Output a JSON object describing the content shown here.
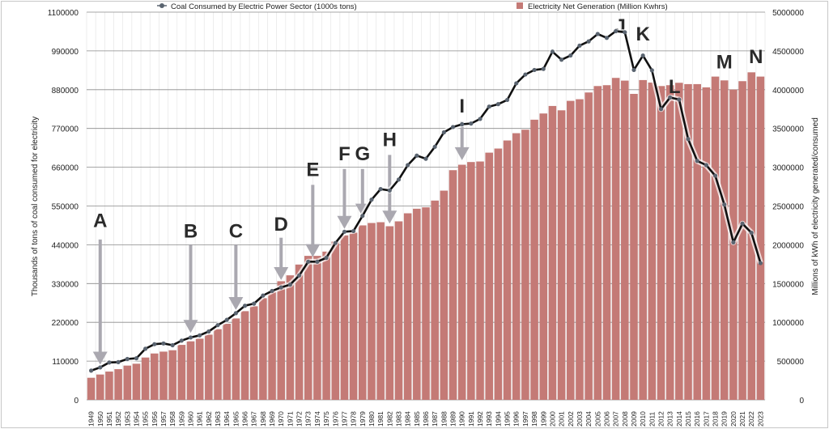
{
  "chart_data": {
    "type": "bar+line",
    "title": "",
    "years": [
      1949,
      1950,
      1951,
      1952,
      1953,
      1954,
      1955,
      1956,
      1957,
      1958,
      1959,
      1960,
      1961,
      1962,
      1963,
      1964,
      1965,
      1966,
      1967,
      1968,
      1969,
      1970,
      1971,
      1972,
      1973,
      1974,
      1975,
      1976,
      1977,
      1978,
      1979,
      1980,
      1981,
      1982,
      1983,
      1984,
      1985,
      1986,
      1987,
      1988,
      1989,
      1990,
      1991,
      1992,
      1993,
      1994,
      1995,
      1996,
      1997,
      1998,
      1999,
      2000,
      2001,
      2002,
      2003,
      2004,
      2005,
      2006,
      2007,
      2008,
      2009,
      2010,
      2011,
      2012,
      2013,
      2014,
      2015,
      2016,
      2017,
      2018,
      2019,
      2020,
      2021,
      2022,
      2023
    ],
    "series": [
      {
        "name": "Electricity Net Generation (Million Kwhrs)",
        "type": "bar",
        "axis": "right",
        "color": "#c47a76",
        "values": [
          285000,
          327000,
          365000,
          396000,
          442000,
          466000,
          546000,
          598000,
          622000,
          640000,
          709000,
          755000,
          789000,
          841000,
          911000,
          981000,
          1050000,
          1144000,
          1207000,
          1311000,
          1398000,
          1530000,
          1606000,
          1745000,
          1857000,
          1857000,
          1912000,
          2041000,
          2121000,
          2156000,
          2250000,
          2281000,
          2291000,
          2239000,
          2302000,
          2406000,
          2465000,
          2483000,
          2570000,
          2698000,
          2962000,
          3032000,
          3067000,
          3074000,
          3188000,
          3241000,
          3345000,
          3439000,
          3484000,
          3613000,
          3693000,
          3790000,
          3734000,
          3856000,
          3877000,
          3964000,
          4047000,
          4058000,
          4152000,
          4117000,
          3946000,
          4124000,
          4092000,
          4047000,
          4058000,
          4089000,
          4072000,
          4072000,
          4030000,
          4169000,
          4120000,
          4002000,
          4110000,
          4224000,
          4169000
        ]
      },
      {
        "name": "Coal Consumed by Electric Power Sector (1000s tons)",
        "type": "line",
        "axis": "left",
        "color": "#111111",
        "marker_color": "#5a6470",
        "values": [
          83000,
          92000,
          106000,
          107000,
          116000,
          118000,
          145000,
          158000,
          160000,
          155000,
          168000,
          177000,
          183000,
          194000,
          212000,
          227000,
          246000,
          267000,
          273000,
          296000,
          309000,
          319000,
          327000,
          353000,
          392000,
          392000,
          403000,
          445000,
          477000,
          479000,
          522000,
          568000,
          598000,
          594000,
          625000,
          666000,
          693000,
          684000,
          718000,
          759000,
          774000,
          782000,
          784000,
          797000,
          832000,
          839000,
          851000,
          898000,
          923000,
          936000,
          939000,
          988000,
          965000,
          977000,
          1005000,
          1017000,
          1038000,
          1027000,
          1046000,
          1043000,
          936000,
          977000,
          935000,
          825000,
          858000,
          852000,
          740000,
          678000,
          666000,
          636000,
          554000,
          447000,
          500000,
          474000,
          388000
        ]
      }
    ],
    "ylabel": "Thousands of tons of coal consumed for electricity",
    "ylabel_right": "Millions of kWh of electricity generated/consumed",
    "ylim": [
      0,
      1100000
    ],
    "ylim_right": [
      0,
      5000000
    ],
    "yticks": [
      "0",
      "110000",
      "220000",
      "330000",
      "440000",
      "550000",
      "660000",
      "770000",
      "880000",
      "990000",
      "1100000"
    ],
    "yticks_right": [
      "0",
      "500000",
      "1000000",
      "1500000",
      "2000000",
      "2500000",
      "3000000",
      "3500000",
      "4000000",
      "4500000",
      "5000000"
    ],
    "grid": true,
    "legend_placement": "top",
    "annotations": [
      {
        "label": "A",
        "year": 1950,
        "value": 490000,
        "arrow_from": 455000,
        "arrow_to": 100000
      },
      {
        "label": "B",
        "year": 1960,
        "value": 460000,
        "arrow_from": 440000,
        "arrow_to": 190000
      },
      {
        "label": "C",
        "year": 1965,
        "value": 460000,
        "arrow_from": 440000,
        "arrow_to": 255000
      },
      {
        "label": "D",
        "year": 1970,
        "value": 480000,
        "arrow_from": 460000,
        "arrow_to": 340000
      },
      {
        "label": "E",
        "year": 1973.5,
        "value": 635000,
        "arrow_from": 610000,
        "arrow_to": 405000
      },
      {
        "label": "F",
        "year": 1977,
        "value": 680000,
        "arrow_from": 655000,
        "arrow_to": 485000
      },
      {
        "label": "G",
        "year": 1979,
        "value": 680000,
        "arrow_from": 655000,
        "arrow_to": 520000
      },
      {
        "label": "H",
        "year": 1982,
        "value": 720000,
        "arrow_from": 695000,
        "arrow_to": 500000
      },
      {
        "label": "I",
        "year": 1990,
        "value": 815000,
        "arrow_from": 790000,
        "arrow_to": 680000
      },
      {
        "label": "J",
        "year": 2007.5,
        "value": 1080000
      },
      {
        "label": "K",
        "year": 2010,
        "value": 1020000
      },
      {
        "label": "L",
        "year": 2013.5,
        "value": 870000
      },
      {
        "label": "M",
        "year": 2019,
        "value": 940000
      },
      {
        "label": "N",
        "year": 2022.5,
        "value": 955000
      }
    ]
  }
}
